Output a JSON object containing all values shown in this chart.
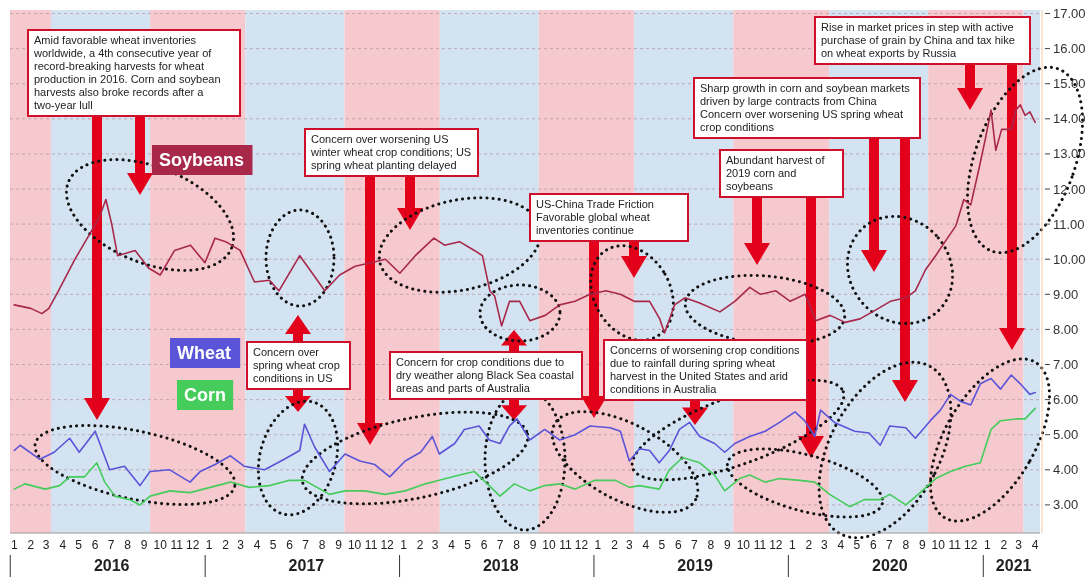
{
  "chart_data": {
    "type": "line",
    "xlim": [
      "2015-12-24",
      "2021-04-10"
    ],
    "ylim": [
      2.2,
      17.1
    ],
    "yticks": [
      {
        "value": 3,
        "label": "3.00"
      },
      {
        "value": 4,
        "label": "4.00"
      },
      {
        "value": 5,
        "label": "5.00"
      },
      {
        "value": 6,
        "label": "6.00"
      },
      {
        "value": 7,
        "label": "7.00"
      },
      {
        "value": 8,
        "label": "8.00"
      },
      {
        "value": 9,
        "label": "9.00"
      },
      {
        "value": 10,
        "label": "10.00"
      },
      {
        "value": 11,
        "label": "11.00"
      },
      {
        "value": 12,
        "label": "12.00"
      },
      {
        "value": 13,
        "label": "13.00"
      },
      {
        "value": 14,
        "label": "14.00"
      },
      {
        "value": 15,
        "label": "15.00"
      },
      {
        "value": 16,
        "label": "16.00"
      },
      {
        "value": 17,
        "label": "17.00"
      }
    ],
    "xticks": [
      {
        "value": "2016-01",
        "label": "1"
      },
      {
        "value": "2016-02",
        "label": "2"
      },
      {
        "value": "2016-03",
        "label": "3"
      },
      {
        "value": "2016-04",
        "label": "4"
      },
      {
        "value": "2016-05",
        "label": "5"
      },
      {
        "value": "2016-06",
        "label": "6"
      },
      {
        "value": "2016-07",
        "label": "7"
      },
      {
        "value": "2016-08",
        "label": "8"
      },
      {
        "value": "2016-09",
        "label": "9"
      },
      {
        "value": "2016-10",
        "label": "10"
      },
      {
        "value": "2016-11",
        "label": "11"
      },
      {
        "value": "2016-12",
        "label": "12"
      },
      {
        "value": "2017-01",
        "label": "1"
      },
      {
        "value": "2017-02",
        "label": "2"
      },
      {
        "value": "2017-03",
        "label": "3"
      },
      {
        "value": "2017-04",
        "label": "4"
      },
      {
        "value": "2017-05",
        "label": "5"
      },
      {
        "value": "2017-06",
        "label": "6"
      },
      {
        "value": "2017-07",
        "label": "7"
      },
      {
        "value": "2017-08",
        "label": "8"
      },
      {
        "value": "2017-09",
        "label": "9"
      },
      {
        "value": "2017-10",
        "label": "10"
      },
      {
        "value": "2017-11",
        "label": "11"
      },
      {
        "value": "2017-12",
        "label": "12"
      },
      {
        "value": "2018-01",
        "label": "1"
      },
      {
        "value": "2018-02",
        "label": "2"
      },
      {
        "value": "2018-03",
        "label": "3"
      },
      {
        "value": "2018-04",
        "label": "4"
      },
      {
        "value": "2018-05",
        "label": "5"
      },
      {
        "value": "2018-06",
        "label": "6"
      },
      {
        "value": "2018-07",
        "label": "7"
      },
      {
        "value": "2018-08",
        "label": "8"
      },
      {
        "value": "2018-09",
        "label": "9"
      },
      {
        "value": "2018-10",
        "label": "10"
      },
      {
        "value": "2018-11",
        "label": "11"
      },
      {
        "value": "2018-12",
        "label": "12"
      },
      {
        "value": "2019-01",
        "label": "1"
      },
      {
        "value": "2019-02",
        "label": "2"
      },
      {
        "value": "2019-03",
        "label": "3"
      },
      {
        "value": "2019-04",
        "label": "4"
      },
      {
        "value": "2019-05",
        "label": "5"
      },
      {
        "value": "2019-06",
        "label": "6"
      },
      {
        "value": "2019-07",
        "label": "7"
      },
      {
        "value": "2019-08",
        "label": "8"
      },
      {
        "value": "2019-09",
        "label": "9"
      },
      {
        "value": "2019-10",
        "label": "10"
      },
      {
        "value": "2019-11",
        "label": "11"
      },
      {
        "value": "2019-12",
        "label": "12"
      },
      {
        "value": "2020-01",
        "label": "1"
      },
      {
        "value": "2020-02",
        "label": "2"
      },
      {
        "value": "2020-03",
        "label": "3"
      },
      {
        "value": "2020-04",
        "label": "4"
      },
      {
        "value": "2020-05",
        "label": "5"
      },
      {
        "value": "2020-06",
        "label": "6"
      },
      {
        "value": "2020-07",
        "label": "7"
      },
      {
        "value": "2020-08",
        "label": "8"
      },
      {
        "value": "2020-09",
        "label": "9"
      },
      {
        "value": "2020-10",
        "label": "10"
      },
      {
        "value": "2020-11",
        "label": "11"
      },
      {
        "value": "2020-12",
        "label": "12"
      },
      {
        "value": "2021-01",
        "label": "1"
      },
      {
        "value": "2021-02",
        "label": "2"
      },
      {
        "value": "2021-03",
        "label": "3"
      },
      {
        "value": "2021-04",
        "label": "4"
      }
    ],
    "grid": "y",
    "legend": "left",
    "line_style": "solid",
    "bands": [
      {
        "axis": "x",
        "from": "2015-12-24",
        "to": "2016-03-10",
        "color": "#f6c9cf"
      },
      {
        "axis": "x",
        "from": "2016-03-10",
        "to": "2016-09-12",
        "color": "#d3e3f2"
      },
      {
        "axis": "x",
        "from": "2016-09-12",
        "to": "2017-03-10",
        "color": "#f6c9cf"
      },
      {
        "axis": "x",
        "from": "2017-03-10",
        "to": "2017-09-12",
        "color": "#d3e3f2"
      },
      {
        "axis": "x",
        "from": "2017-09-12",
        "to": "2018-03-10",
        "color": "#f6c9cf"
      },
      {
        "axis": "x",
        "from": "2018-03-10",
        "to": "2018-09-12",
        "color": "#d3e3f2"
      },
      {
        "axis": "x",
        "from": "2018-09-12",
        "to": "2019-03-10",
        "color": "#f6c9cf"
      },
      {
        "axis": "x",
        "from": "2019-03-10",
        "to": "2019-09-12",
        "color": "#d3e3f2"
      },
      {
        "axis": "x",
        "from": "2019-09-12",
        "to": "2020-03-10",
        "color": "#f6c9cf"
      },
      {
        "axis": "x",
        "from": "2020-03-10",
        "to": "2020-09-12",
        "color": "#d3e3f2"
      },
      {
        "axis": "x",
        "from": "2020-09-12",
        "to": "2021-03-10",
        "color": "#f6c9cf"
      },
      {
        "axis": "x",
        "from": "2021-03-10",
        "to": "2021-04-10",
        "color": "#d3e3f2"
      }
    ],
    "annotations": [
      "Amid favorable wheat inventories worldwide, a 4th consecutive year of record-breaking harvests for wheat production in 2016. Corn and soybean harvests also broke records after a two-year lull",
      "Concern over worsening US winter wheat crop conditions; US spring wheat planting delayed",
      "Concern over spring wheat crop conditions in US",
      "Concern for crop conditions due to dry weather along Black Sea coastal areas and parts of Australia",
      "US-China Trade Friction Favorable global wheat inventories continue",
      "Concerns of worsening crop conditions due to rainfall during spring wheat harvest in the United States and arid conditions in Australia",
      "Abundant harvest of 2019 corn and soybeans",
      "Sharp growth in corn and soybean markets driven by large contracts from China Concern over worsening US spring wheat crop conditions",
      "Rise in market prices in step with active purchase of grain by China and tax hike on wheat exports by Russia",
      "2016",
      "2017",
      "2018",
      "2019",
      "2020",
      "2021"
    ],
    "series": [
      {
        "name": "Soybeans",
        "color": "#a8284a",
        "x": [
          "2016-01-01",
          "2016-02-01",
          "2016-02-22",
          "2016-03-06",
          "2016-03-24",
          "2016-04-24",
          "2016-05-21",
          "2016-06-09",
          "2016-06-21",
          "2016-07-02",
          "2016-07-13",
          "2016-08-15",
          "2016-09-09",
          "2016-10-01",
          "2016-10-28",
          "2016-11-27",
          "2016-12-24",
          "2017-01-12",
          "2017-02-01",
          "2017-02-28",
          "2017-03-27",
          "2017-04-24",
          "2017-05-12",
          "2017-06-20",
          "2017-07-09",
          "2017-08-06",
          "2017-09-03",
          "2017-10-02",
          "2017-11-01",
          "2017-11-28",
          "2017-12-25",
          "2018-01-23",
          "2018-02-27",
          "2018-03-19",
          "2018-04-16",
          "2018-05-14",
          "2018-05-29",
          "2018-06-12",
          "2018-06-21",
          "2018-07-04",
          "2018-07-19",
          "2018-08-07",
          "2018-08-26",
          "2018-09-24",
          "2018-10-21",
          "2018-11-19",
          "2018-12-17",
          "2019-01-16",
          "2019-02-12",
          "2019-03-10",
          "2019-04-08",
          "2019-04-27",
          "2019-05-06",
          "2019-05-25",
          "2019-06-13",
          "2019-07-11",
          "2019-08-18",
          "2019-09-15",
          "2019-10-13",
          "2019-11-02",
          "2019-12-01",
          "2019-12-28",
          "2020-01-25",
          "2020-02-14",
          "2020-03-12",
          "2020-04-09",
          "2020-05-07",
          "2020-06-05",
          "2020-07-03",
          "2020-08-01",
          "2020-08-19",
          "2020-09-07",
          "2020-09-26",
          "2020-10-16",
          "2020-11-03",
          "2020-11-18",
          "2020-12-01",
          "2020-12-16",
          "2020-12-28",
          "2021-01-08",
          "2021-01-17",
          "2021-01-28",
          "2021-02-15",
          "2021-02-24",
          "2021-03-04",
          "2021-03-13",
          "2021-03-22",
          "2021-04-01"
        ],
        "values": [
          8.7,
          8.6,
          8.45,
          8.6,
          9.1,
          10.0,
          10.7,
          11.2,
          11.7,
          11.0,
          10.1,
          10.25,
          9.75,
          9.55,
          10.25,
          10.4,
          9.9,
          10.6,
          10.5,
          10.25,
          9.35,
          9.4,
          9.1,
          10.1,
          9.7,
          9.1,
          9.55,
          9.8,
          9.9,
          10.0,
          9.6,
          10.1,
          10.6,
          10.4,
          10.5,
          10.25,
          10.1,
          9.1,
          8.95,
          8.1,
          8.8,
          8.8,
          8.25,
          8.4,
          8.7,
          8.8,
          9.0,
          9.1,
          9.0,
          8.8,
          8.8,
          8.3,
          7.9,
          8.7,
          8.9,
          8.75,
          8.5,
          8.8,
          9.2,
          9.0,
          9.1,
          8.8,
          9.0,
          8.25,
          8.4,
          8.2,
          8.3,
          8.55,
          8.8,
          8.9,
          9.1,
          9.7,
          10.1,
          10.55,
          10.95,
          11.7,
          11.55,
          12.55,
          13.4,
          14.25,
          13.1,
          13.7,
          13.7,
          14.25,
          14.4,
          14.1,
          14.2,
          13.9
        ]
      },
      {
        "name": "Wheat",
        "color": "#5a55d8",
        "x": [
          "2016-01-01",
          "2016-01-12",
          "2016-02-18",
          "2016-03-16",
          "2016-04-14",
          "2016-05-02",
          "2016-06-01",
          "2016-06-28",
          "2016-07-26",
          "2016-08-24",
          "2016-09-12",
          "2016-10-19",
          "2016-11-26",
          "2016-12-15",
          "2017-01-12",
          "2017-02-10",
          "2017-03-08",
          "2017-04-15",
          "2017-05-22",
          "2017-06-20",
          "2017-06-29",
          "2017-07-18",
          "2017-08-15",
          "2017-09-13",
          "2017-10-11",
          "2017-11-08",
          "2017-12-06",
          "2018-01-04",
          "2018-02-02",
          "2018-02-24",
          "2018-03-09",
          "2018-04-07",
          "2018-04-25",
          "2018-05-23",
          "2018-06-11",
          "2018-07-01",
          "2018-07-19",
          "2018-08-02",
          "2018-08-26",
          "2018-09-23",
          "2018-10-21",
          "2018-11-19",
          "2018-12-17",
          "2019-01-24",
          "2019-02-12",
          "2019-03-01",
          "2019-03-20",
          "2019-04-08",
          "2019-04-26",
          "2019-05-15",
          "2019-06-03",
          "2019-06-22",
          "2019-07-11",
          "2019-08-08",
          "2019-08-27",
          "2019-09-15",
          "2019-10-13",
          "2019-11-11",
          "2019-12-08",
          "2020-01-06",
          "2020-01-24",
          "2020-02-12",
          "2020-02-23",
          "2020-03-20",
          "2020-04-27",
          "2020-05-24",
          "2020-06-14",
          "2020-07-02",
          "2020-08-01",
          "2020-08-19",
          "2020-09-16",
          "2020-10-05",
          "2020-10-24",
          "2020-11-12",
          "2020-12-01",
          "2020-12-19",
          "2021-01-08",
          "2021-01-26",
          "2021-02-15",
          "2021-03-04",
          "2021-03-22",
          "2021-04-01"
        ],
        "values": [
          4.55,
          4.7,
          4.3,
          4.5,
          4.9,
          4.5,
          5.1,
          4.0,
          4.1,
          3.55,
          3.95,
          4.0,
          3.65,
          3.95,
          4.15,
          4.4,
          4.1,
          4.0,
          4.3,
          4.55,
          5.3,
          4.65,
          3.95,
          4.45,
          4.25,
          4.15,
          3.8,
          4.25,
          4.5,
          4.95,
          4.45,
          4.75,
          5.15,
          5.25,
          4.85,
          4.75,
          5.25,
          5.45,
          4.85,
          5.15,
          4.85,
          5.0,
          5.25,
          5.2,
          5.1,
          4.25,
          4.6,
          4.55,
          4.2,
          4.55,
          5.15,
          5.35,
          4.95,
          4.75,
          4.5,
          4.75,
          4.95,
          5.1,
          5.35,
          5.65,
          5.4,
          4.95,
          5.7,
          5.35,
          5.1,
          5.05,
          4.7,
          5.25,
          5.2,
          4.9,
          5.4,
          5.7,
          6.15,
          5.95,
          5.85,
          6.45,
          6.6,
          6.3,
          6.7,
          6.45,
          6.15,
          6.2
        ]
      },
      {
        "name": "Corn",
        "color": "#45cc5a",
        "x": [
          "2016-01-01",
          "2016-01-21",
          "2016-02-28",
          "2016-03-26",
          "2016-04-14",
          "2016-05-12",
          "2016-06-04",
          "2016-06-19",
          "2016-07-08",
          "2016-08-05",
          "2016-08-24",
          "2016-09-12",
          "2016-10-19",
          "2016-11-26",
          "2017-01-03",
          "2017-02-10",
          "2017-03-17",
          "2017-04-24",
          "2017-06-01",
          "2017-06-29",
          "2017-08-15",
          "2017-09-13",
          "2017-10-20",
          "2017-11-27",
          "2018-01-04",
          "2018-02-11",
          "2018-03-09",
          "2018-04-16",
          "2018-05-14",
          "2018-06-11",
          "2018-07-01",
          "2018-07-28",
          "2018-08-26",
          "2018-09-23",
          "2018-10-21",
          "2018-11-19",
          "2018-12-26",
          "2019-02-03",
          "2019-03-01",
          "2019-03-20",
          "2019-04-26",
          "2019-05-15",
          "2019-06-09",
          "2019-07-11",
          "2019-08-08",
          "2019-08-27",
          "2019-09-24",
          "2019-10-13",
          "2019-11-11",
          "2019-12-08",
          "2020-01-15",
          "2020-02-12",
          "2020-03-11",
          "2020-04-18",
          "2020-05-15",
          "2020-06-14",
          "2020-07-02",
          "2020-08-01",
          "2020-08-28",
          "2020-09-26",
          "2020-10-24",
          "2020-11-21",
          "2020-12-19",
          "2021-01-08",
          "2021-01-26",
          "2021-02-24",
          "2021-03-13",
          "2021-04-01"
        ],
        "values": [
          3.45,
          3.6,
          3.45,
          3.55,
          3.8,
          3.8,
          4.2,
          3.65,
          3.25,
          3.15,
          3.0,
          3.25,
          3.4,
          3.35,
          3.5,
          3.65,
          3.5,
          3.55,
          3.7,
          3.7,
          3.3,
          3.4,
          3.4,
          3.3,
          3.4,
          3.6,
          3.7,
          3.85,
          3.95,
          3.55,
          3.25,
          3.6,
          3.4,
          3.55,
          3.6,
          3.45,
          3.7,
          3.7,
          3.5,
          3.55,
          3.45,
          4.0,
          4.35,
          4.2,
          3.85,
          3.4,
          3.75,
          3.85,
          3.65,
          3.75,
          3.7,
          3.65,
          3.3,
          2.95,
          3.15,
          3.15,
          3.3,
          3.0,
          3.35,
          3.75,
          3.95,
          4.1,
          4.2,
          5.15,
          5.4,
          5.45,
          5.45,
          5.75
        ]
      }
    ]
  }
}
